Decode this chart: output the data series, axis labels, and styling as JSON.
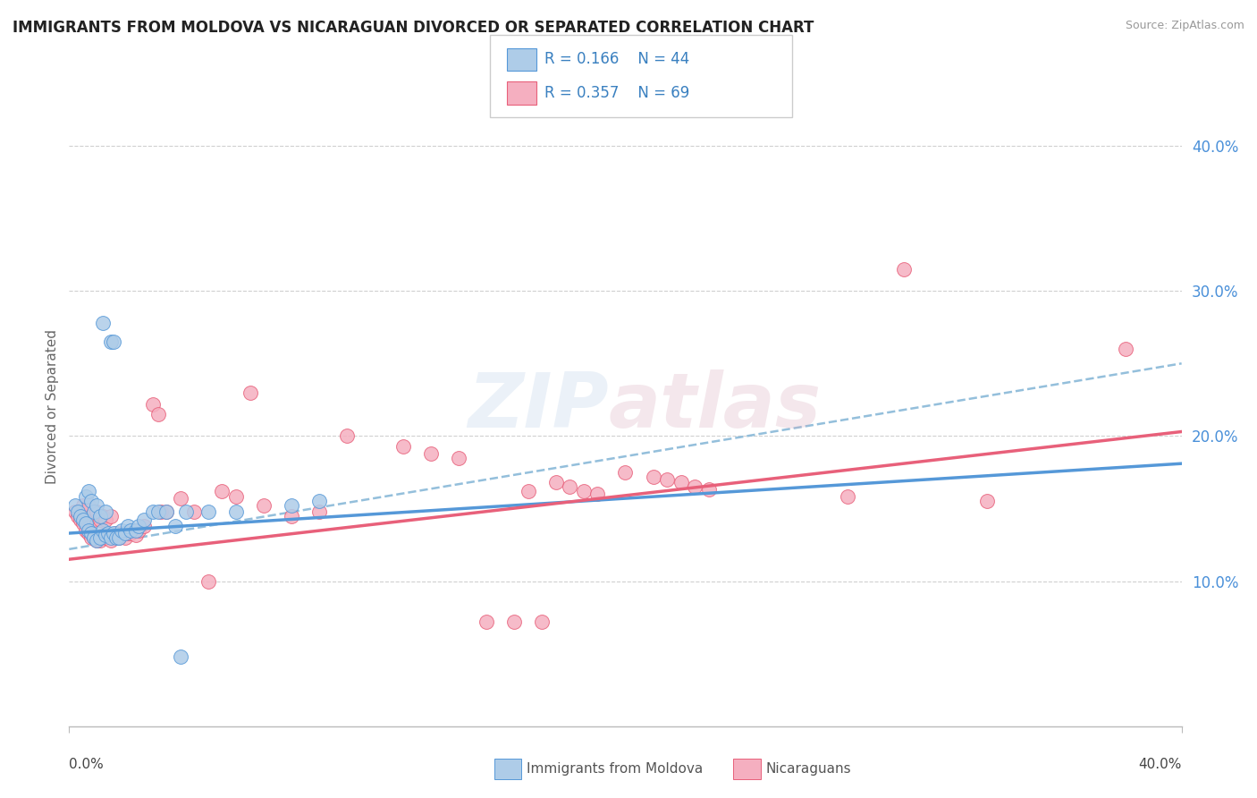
{
  "title": "IMMIGRANTS FROM MOLDOVA VS NICARAGUAN DIVORCED OR SEPARATED CORRELATION CHART",
  "source": "Source: ZipAtlas.com",
  "ylabel": "Divorced or Separated",
  "xlim": [
    0.0,
    0.4
  ],
  "ylim": [
    0.0,
    0.44
  ],
  "yticks": [
    0.1,
    0.2,
    0.3,
    0.4
  ],
  "ytick_labels": [
    "10.0%",
    "20.0%",
    "30.0%",
    "40.0%"
  ],
  "label1": "Immigrants from Moldova",
  "label2": "Nicaraguans",
  "color1": "#aecce8",
  "color2": "#f5afc0",
  "line_color1": "#5598d8",
  "line_color2": "#e8607a",
  "dashed_color": "#88b8d8",
  "blue_x": [
    0.002,
    0.003,
    0.004,
    0.005,
    0.006,
    0.006,
    0.007,
    0.007,
    0.008,
    0.008,
    0.009,
    0.009,
    0.01,
    0.01,
    0.011,
    0.011,
    0.012,
    0.012,
    0.013,
    0.013,
    0.014,
    0.015,
    0.015,
    0.016,
    0.016,
    0.017,
    0.018,
    0.019,
    0.02,
    0.021,
    0.022,
    0.024,
    0.025,
    0.027,
    0.03,
    0.032,
    0.035,
    0.038,
    0.04,
    0.042,
    0.05,
    0.06,
    0.08,
    0.09
  ],
  "blue_y": [
    0.152,
    0.148,
    0.145,
    0.142,
    0.14,
    0.158,
    0.135,
    0.162,
    0.133,
    0.155,
    0.13,
    0.148,
    0.128,
    0.152,
    0.13,
    0.145,
    0.135,
    0.278,
    0.132,
    0.148,
    0.133,
    0.13,
    0.265,
    0.133,
    0.265,
    0.13,
    0.13,
    0.135,
    0.133,
    0.138,
    0.135,
    0.135,
    0.138,
    0.142,
    0.148,
    0.148,
    0.148,
    0.138,
    0.048,
    0.148,
    0.148,
    0.148,
    0.152,
    0.155
  ],
  "pink_x": [
    0.002,
    0.003,
    0.004,
    0.005,
    0.005,
    0.006,
    0.006,
    0.007,
    0.007,
    0.008,
    0.008,
    0.009,
    0.009,
    0.01,
    0.01,
    0.011,
    0.011,
    0.012,
    0.012,
    0.013,
    0.013,
    0.014,
    0.015,
    0.015,
    0.016,
    0.017,
    0.018,
    0.019,
    0.02,
    0.021,
    0.022,
    0.024,
    0.025,
    0.027,
    0.03,
    0.032,
    0.033,
    0.035,
    0.04,
    0.045,
    0.05,
    0.055,
    0.06,
    0.065,
    0.07,
    0.08,
    0.09,
    0.1,
    0.12,
    0.13,
    0.14,
    0.15,
    0.16,
    0.165,
    0.17,
    0.175,
    0.18,
    0.185,
    0.19,
    0.2,
    0.21,
    0.215,
    0.22,
    0.225,
    0.23,
    0.28,
    0.3,
    0.33,
    0.38
  ],
  "pink_y": [
    0.148,
    0.145,
    0.142,
    0.14,
    0.152,
    0.135,
    0.148,
    0.133,
    0.152,
    0.13,
    0.145,
    0.13,
    0.142,
    0.128,
    0.148,
    0.128,
    0.142,
    0.132,
    0.145,
    0.13,
    0.142,
    0.132,
    0.128,
    0.145,
    0.132,
    0.133,
    0.13,
    0.133,
    0.13,
    0.133,
    0.133,
    0.132,
    0.135,
    0.138,
    0.222,
    0.215,
    0.148,
    0.148,
    0.157,
    0.148,
    0.1,
    0.162,
    0.158,
    0.23,
    0.152,
    0.145,
    0.148,
    0.2,
    0.193,
    0.188,
    0.185,
    0.072,
    0.072,
    0.162,
    0.072,
    0.168,
    0.165,
    0.162,
    0.16,
    0.175,
    0.172,
    0.17,
    0.168,
    0.165,
    0.163,
    0.158,
    0.315,
    0.155,
    0.26
  ],
  "reg_blue_slope": 0.12,
  "reg_blue_intercept": 0.133,
  "reg_pink_slope": 0.22,
  "reg_pink_intercept": 0.115,
  "dash_slope": 0.32,
  "dash_intercept": 0.122,
  "legend_r1": "R = 0.166",
  "legend_n1": "N = 44",
  "legend_r2": "R = 0.357",
  "legend_n2": "N = 69"
}
